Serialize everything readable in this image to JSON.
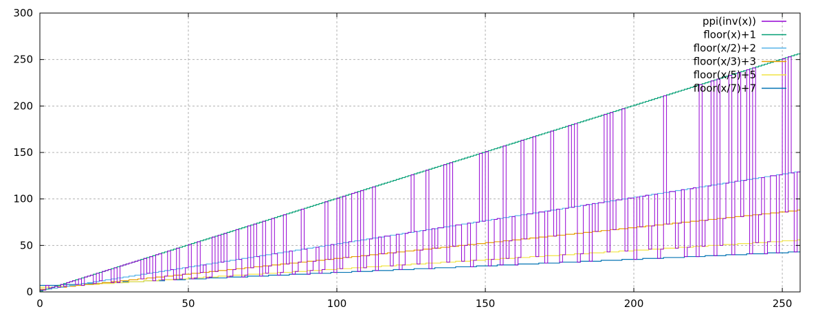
{
  "chart_data": {
    "type": "line",
    "title": "",
    "xlabel": "",
    "ylabel": "",
    "xlim": [
      0,
      256
    ],
    "ylim": [
      0,
      300
    ],
    "x_ticks": [
      0,
      50,
      100,
      150,
      200,
      250
    ],
    "y_ticks": [
      0,
      50,
      100,
      150,
      200,
      250,
      300
    ],
    "x_tick_labels": [
      "0",
      "50",
      "100",
      "150",
      "200",
      "250"
    ],
    "y_tick_labels": [
      "0",
      "50",
      "100",
      "150",
      "200",
      "250",
      "300"
    ],
    "grid": true,
    "legend_position": "top-right",
    "series": [
      {
        "name": "ppi(inv(x))",
        "color": "#9400d3",
        "style": "steps",
        "x": [
          0,
          5,
          7,
          8,
          10,
          11,
          13,
          14,
          16,
          17,
          19,
          20,
          22,
          23,
          25,
          26,
          28,
          29,
          30,
          31,
          32,
          33,
          35,
          36,
          37,
          38,
          40,
          41,
          43,
          44,
          46,
          47,
          50,
          51,
          53,
          54,
          58,
          59,
          60,
          61,
          62,
          63,
          66,
          67,
          70,
          71,
          72,
          73,
          75,
          76,
          78,
          79,
          82,
          83,
          88,
          89,
          96,
          97,
          100,
          101,
          102,
          103,
          105,
          106,
          106,
          107,
          108,
          109,
          112,
          113,
          125,
          126,
          130,
          131,
          136,
          137,
          138,
          139,
          148,
          149,
          150,
          151,
          156,
          157,
          162,
          163,
          166,
          167,
          172,
          173,
          178,
          179,
          180,
          181,
          190,
          191,
          192,
          193,
          196,
          197,
          210,
          211,
          222,
          223,
          226,
          227,
          228,
          229,
          232,
          233,
          235,
          236,
          238,
          239,
          240,
          241,
          250,
          251,
          252,
          253,
          256
        ],
        "y": [
          2,
          6,
          8,
          9,
          11,
          12,
          14,
          15,
          17,
          18,
          20,
          21,
          23,
          24,
          26,
          27,
          29,
          30,
          31,
          32,
          33,
          34,
          36,
          37,
          38,
          39,
          41,
          42,
          44,
          45,
          47,
          48,
          51,
          52,
          54,
          55,
          59,
          60,
          61,
          62,
          63,
          64,
          67,
          68,
          71,
          72,
          73,
          74,
          76,
          77,
          79,
          80,
          83,
          84,
          89,
          90,
          97,
          98,
          101,
          102,
          103,
          104,
          106,
          107,
          107,
          108,
          109,
          110,
          113,
          114,
          126,
          127,
          131,
          132,
          137,
          138,
          139,
          140,
          149,
          150,
          151,
          152,
          157,
          158,
          163,
          164,
          167,
          168,
          173,
          174,
          179,
          180,
          181,
          182,
          191,
          192,
          193,
          194,
          197,
          198,
          211,
          212,
          223,
          224,
          227,
          228,
          229,
          230,
          233,
          234,
          236,
          237,
          239,
          240,
          241,
          242,
          251,
          252,
          253,
          254,
          256
        ]
      },
      {
        "name": "floor(x)+1",
        "color": "#009e73",
        "formula": "floor(x)+1",
        "divisor": 1,
        "offset": 1
      },
      {
        "name": "floor(x/2)+2",
        "color": "#56b4e9",
        "formula": "floor(x/2)+2",
        "divisor": 2,
        "offset": 2
      },
      {
        "name": "floor(x/3)+3",
        "color": "#e69f00",
        "formula": "floor(x/3)+3",
        "divisor": 3,
        "offset": 3
      },
      {
        "name": "floor(x/5)+5",
        "color": "#f0e442",
        "formula": "floor(x/5)+5",
        "divisor": 5,
        "offset": 5
      },
      {
        "name": "floor(x/7)+7",
        "color": "#0072b2",
        "formula": "floor(x/7)+7",
        "divisor": 7,
        "offset": 7
      }
    ],
    "ppi_drop_pattern": "between peaks the series drops to one of the floor(x/k)+k lines"
  }
}
